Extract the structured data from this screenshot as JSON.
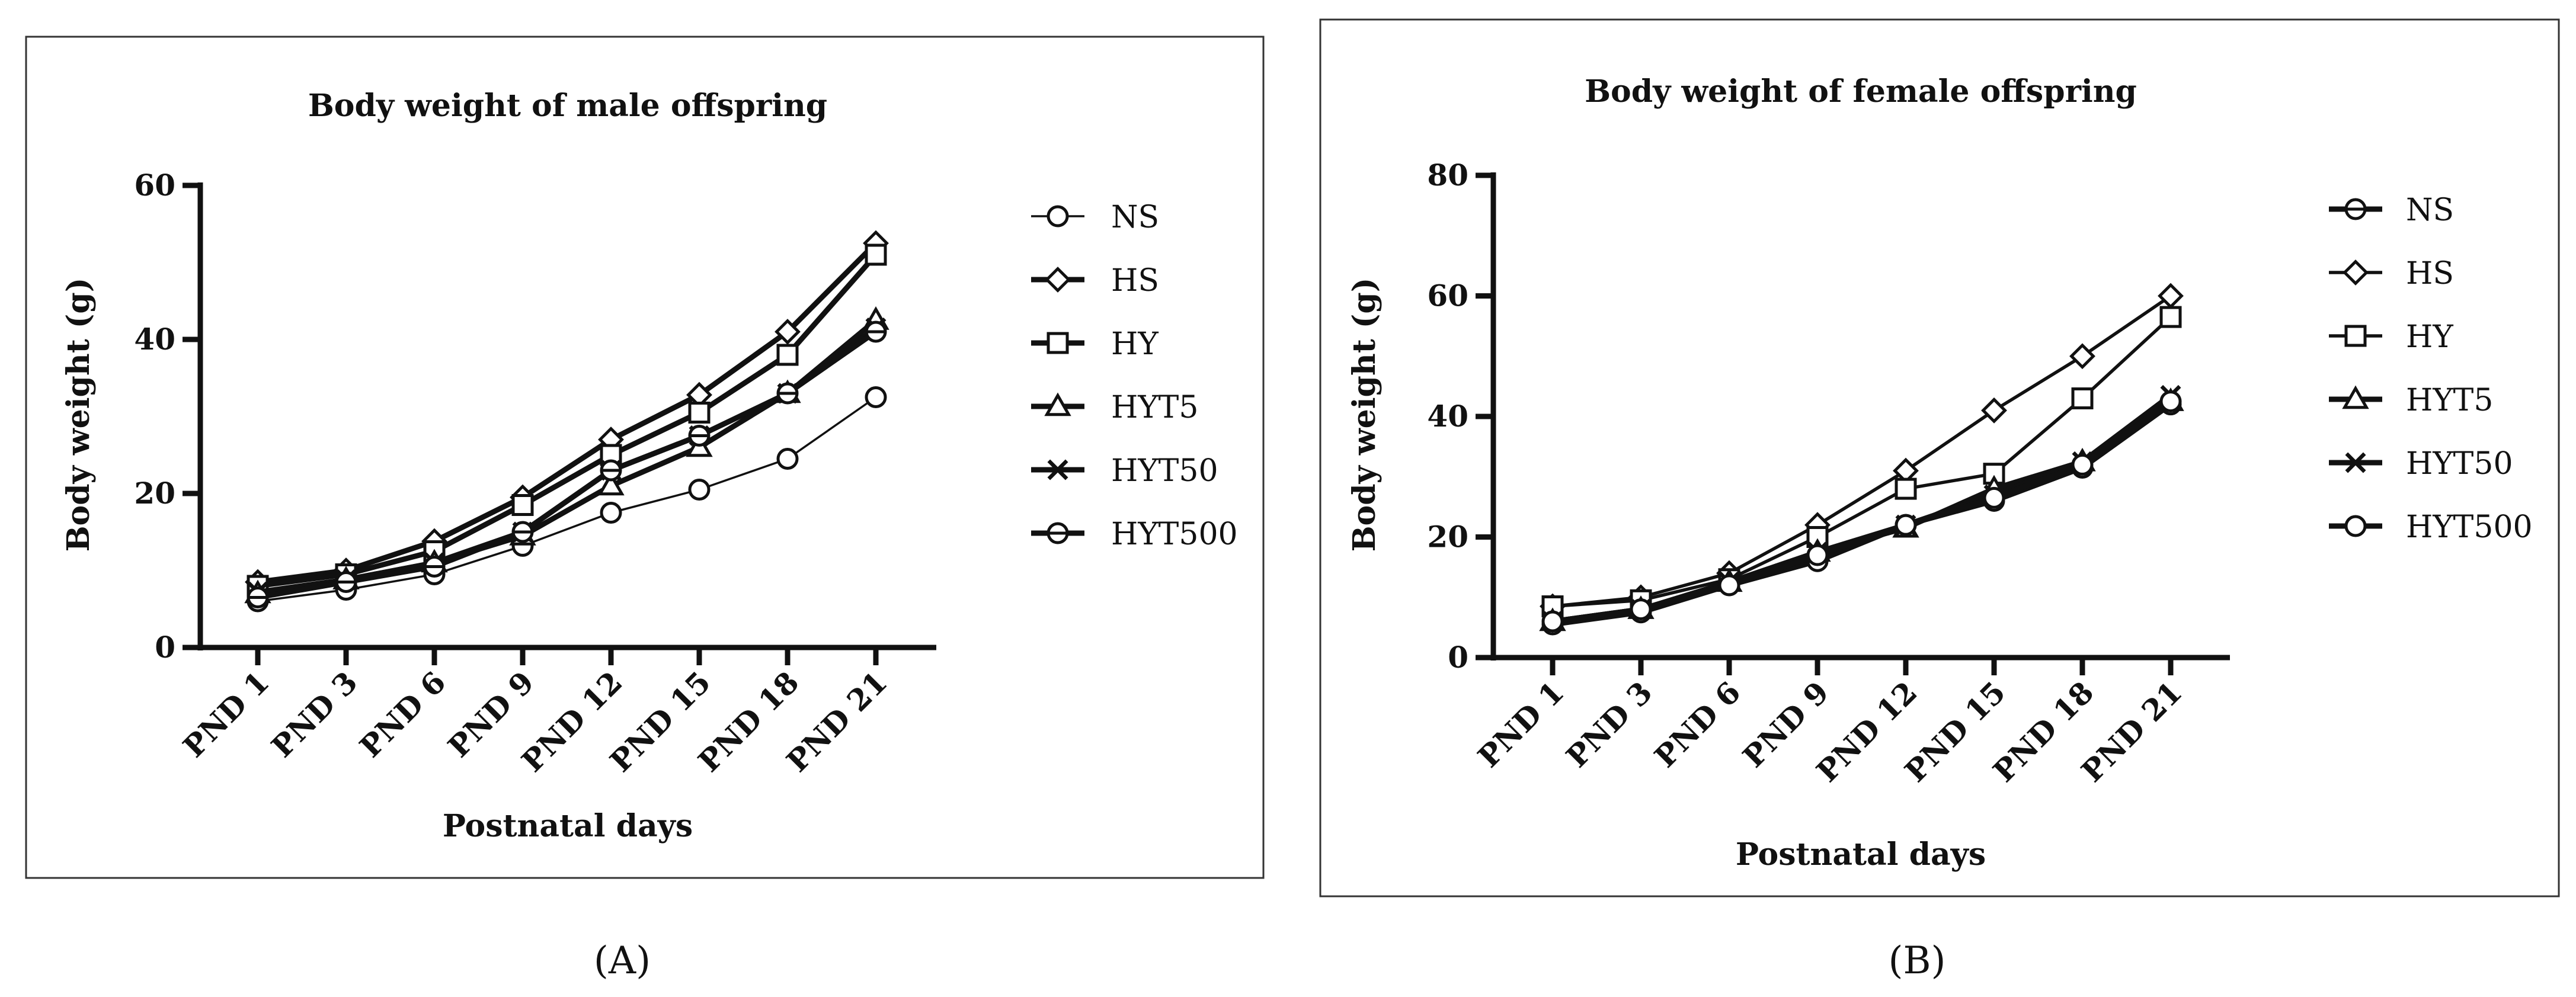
{
  "chart_data": [
    {
      "type": "line",
      "panel_label": "(A)",
      "title": "Body weight of male offspring",
      "xlabel": "Postnatal days",
      "ylabel": "Body weight (g)",
      "categories": [
        "PND 1",
        "PND 3",
        "PND 6",
        "PND 9",
        "PND 12",
        "PND 15",
        "PND 18",
        "PND 21"
      ],
      "ylim": [
        0,
        60
      ],
      "yticks": [
        0,
        20,
        40,
        60
      ],
      "legend_position": "right",
      "series": [
        {
          "name": "NS",
          "marker": "circle",
          "values": [
            6.0,
            7.5,
            9.5,
            13.2,
            17.5,
            20.5,
            24.5,
            32.5
          ]
        },
        {
          "name": "HS",
          "marker": "diamond",
          "values": [
            8.5,
            10.0,
            13.8,
            19.5,
            27.0,
            32.8,
            41.0,
            52.5
          ]
        },
        {
          "name": "HY",
          "marker": "square",
          "values": [
            8.0,
            9.5,
            12.5,
            18.5,
            25.0,
            30.5,
            38.0,
            51.0
          ]
        },
        {
          "name": "HYT5",
          "marker": "triangle",
          "values": [
            7.0,
            8.8,
            11.0,
            14.5,
            21.0,
            26.0,
            33.0,
            42.5
          ]
        },
        {
          "name": "HYT50",
          "marker": "x",
          "values": [
            7.2,
            8.8,
            11.0,
            15.0,
            23.0,
            27.5,
            33.0,
            41.5
          ]
        },
        {
          "name": "HYT500",
          "marker": "circle-bar",
          "values": [
            6.5,
            8.5,
            10.5,
            15.0,
            23.0,
            27.5,
            33.0,
            41.0
          ]
        }
      ]
    },
    {
      "type": "line",
      "panel_label": "(B)",
      "title": "Body weight of female offspring",
      "xlabel": "Postnatal days",
      "ylabel": "Body weight (g)",
      "categories": [
        "PND 1",
        "PND 3",
        "PND 6",
        "PND 9",
        "PND 12",
        "PND 15",
        "PND 18",
        "PND 21"
      ],
      "ylim": [
        0,
        80
      ],
      "yticks": [
        0,
        20,
        40,
        60,
        80
      ],
      "legend_position": "right",
      "series": [
        {
          "name": "NS",
          "marker": "circle-bar",
          "values": [
            5.5,
            7.5,
            12.0,
            16.0,
            22.0,
            26.0,
            31.5,
            42.0
          ]
        },
        {
          "name": "HS",
          "marker": "diamond",
          "values": [
            8.5,
            10.0,
            14.0,
            22.0,
            31.0,
            41.0,
            50.0,
            60.0
          ]
        },
        {
          "name": "HY",
          "marker": "square",
          "values": [
            8.5,
            9.5,
            13.0,
            20.0,
            28.0,
            30.5,
            43.0,
            56.5
          ]
        },
        {
          "name": "HYT5",
          "marker": "triangle",
          "values": [
            6.0,
            8.0,
            12.5,
            17.5,
            21.5,
            28.0,
            32.5,
            42.5
          ]
        },
        {
          "name": "HYT50",
          "marker": "x",
          "values": [
            6.0,
            8.0,
            12.5,
            17.5,
            22.0,
            27.0,
            32.5,
            43.5
          ]
        },
        {
          "name": "HYT500",
          "marker": "circle",
          "values": [
            6.0,
            8.0,
            12.0,
            17.0,
            22.0,
            26.5,
            32.0,
            42.5
          ]
        }
      ]
    }
  ]
}
